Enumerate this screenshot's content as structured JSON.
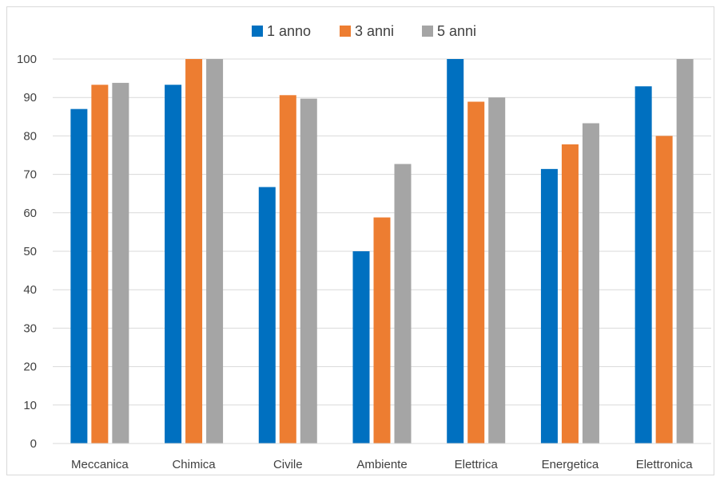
{
  "chart_data": {
    "type": "bar",
    "title": "",
    "xlabel": "",
    "ylabel": "",
    "categories": [
      "Meccanica",
      "Chimica",
      "Civile",
      "Ambiente",
      "Elettrica",
      "Energetica",
      "Elettronica"
    ],
    "series": [
      {
        "name": "1 anno",
        "color": "#0070C0",
        "values": [
          87,
          93.3,
          66.7,
          50,
          100,
          71.4,
          92.9
        ]
      },
      {
        "name": "3 anni",
        "color": "#ED7D31",
        "values": [
          93.3,
          100,
          90.6,
          58.8,
          88.9,
          77.8,
          80
        ]
      },
      {
        "name": "5 anni",
        "color": "#A5A5A5",
        "values": [
          93.8,
          100,
          89.7,
          72.7,
          90,
          83.3,
          100
        ]
      }
    ],
    "ylim": [
      0,
      100
    ],
    "yticks": [
      0,
      10,
      20,
      30,
      40,
      50,
      60,
      70,
      80,
      90,
      100
    ],
    "grid": true,
    "legend_position": "top"
  }
}
